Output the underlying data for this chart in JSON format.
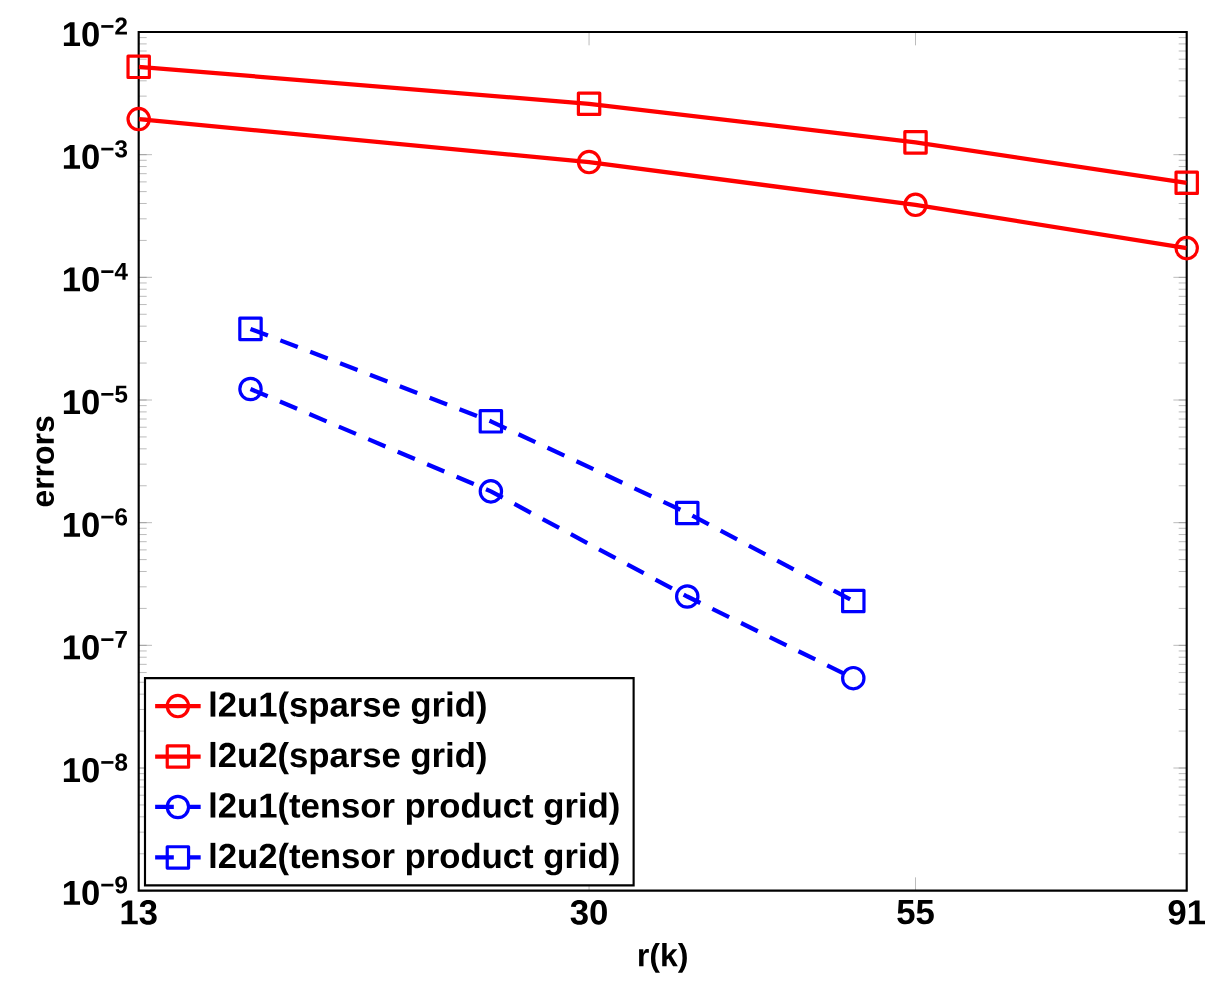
{
  "chart_data": {
    "type": "line",
    "xlabel": "r(k)",
    "ylabel": "errors",
    "log": "xy",
    "grid": false,
    "legend": "bottom left",
    "xlim": [
      13,
      91
    ],
    "xticks": [
      13,
      30,
      55,
      91
    ],
    "ylim": [
      1e-09,
      0.01
    ],
    "yticks": [
      {
        "value": 1e-09,
        "label": "10$^{−9}$"
      },
      {
        "value": 1e-08,
        "label": "10$^{−8}$"
      },
      {
        "value": 1e-07,
        "label": "10$^{−7}$"
      },
      {
        "value": 1e-06,
        "label": "10$^{−6}$"
      },
      {
        "value": 1e-05,
        "label": "10$^{−5}$"
      },
      {
        "value": 0.0001,
        "label": "10$^{−4}$"
      },
      {
        "value": 0.001,
        "label": "10$^{−3}$"
      },
      {
        "value": 0.01,
        "label": "10$^{−2}$"
      }
    ],
    "series": [
      {
        "name": "l2u1(sparse grid)",
        "color": "#ff0000",
        "marker": "circle",
        "line_style": "solid",
        "x": [
          13,
          30,
          55,
          91
        ],
        "values": [
          0.00195,
          0.00087,
          0.00039,
          0.000173
        ]
      },
      {
        "name": "l2u2(sparse grid)",
        "color": "#ff0000",
        "marker": "square",
        "line_style": "solid",
        "x": [
          13,
          30,
          55,
          91
        ],
        "values": [
          0.0052,
          0.0026,
          0.00126,
          0.00059
        ]
      },
      {
        "name": "l2u1(tensor product grid)",
        "color": "#0000ff",
        "marker": "circle",
        "line_style": "dashed",
        "x": [
          16,
          25,
          36,
          49
        ],
        "values": [
          1.23e-05,
          1.8e-06,
          2.5e-07,
          5.4e-08
        ]
      },
      {
        "name": "l2u2(tensor product grid)",
        "color": "#0000ff",
        "marker": "square",
        "line_style": "dashed",
        "x": [
          16,
          25,
          36,
          49
        ],
        "values": [
          3.8e-05,
          6.7e-06,
          1.2e-06,
          2.3e-07
        ]
      }
    ]
  }
}
